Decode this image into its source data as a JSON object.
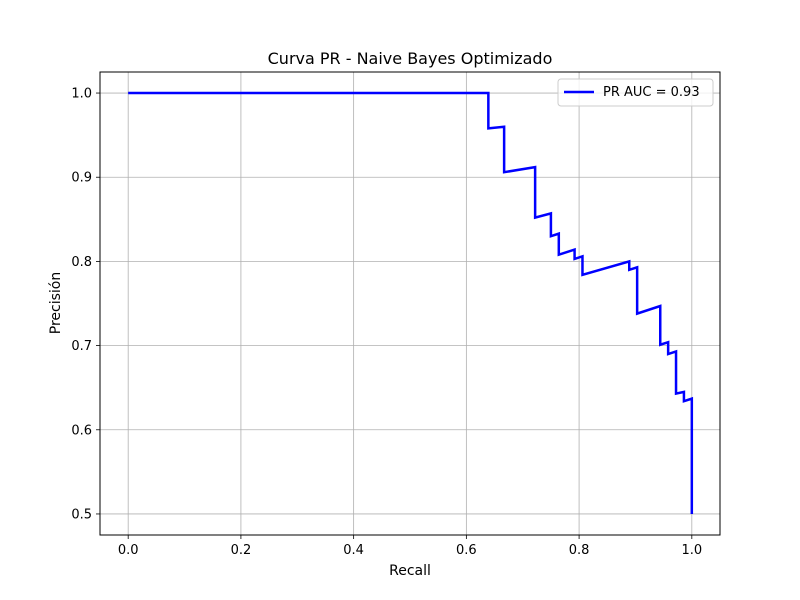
{
  "chart_data": {
    "type": "line",
    "title": "Curva PR - Naive Bayes Optimizado",
    "xlabel": "Recall",
    "ylabel": "Precisión",
    "xlim": [
      -0.05,
      1.05
    ],
    "ylim": [
      0.475,
      1.025
    ],
    "xticks": [
      "0.0",
      "0.2",
      "0.4",
      "0.6",
      "0.8",
      "1.0"
    ],
    "yticks": [
      "0.5",
      "0.6",
      "0.7",
      "0.8",
      "0.9",
      "1.0"
    ],
    "grid": true,
    "legend_position": "top-right",
    "series": [
      {
        "name": "PR AUC = 0.93",
        "color": "#0000ff",
        "x": [
          0.0,
          0.639,
          0.639,
          0.667,
          0.667,
          0.722,
          0.722,
          0.75,
          0.75,
          0.764,
          0.764,
          0.792,
          0.792,
          0.806,
          0.806,
          0.889,
          0.889,
          0.903,
          0.903,
          0.944,
          0.944,
          0.958,
          0.958,
          0.972,
          0.972,
          0.986,
          0.986,
          1.0,
          1.0
        ],
        "y": [
          1.0,
          1.0,
          0.958,
          0.96,
          0.906,
          0.912,
          0.852,
          0.857,
          0.83,
          0.833,
          0.808,
          0.814,
          0.803,
          0.806,
          0.784,
          0.8,
          0.79,
          0.793,
          0.738,
          0.747,
          0.701,
          0.704,
          0.69,
          0.693,
          0.643,
          0.645,
          0.634,
          0.637,
          0.5
        ]
      }
    ]
  }
}
